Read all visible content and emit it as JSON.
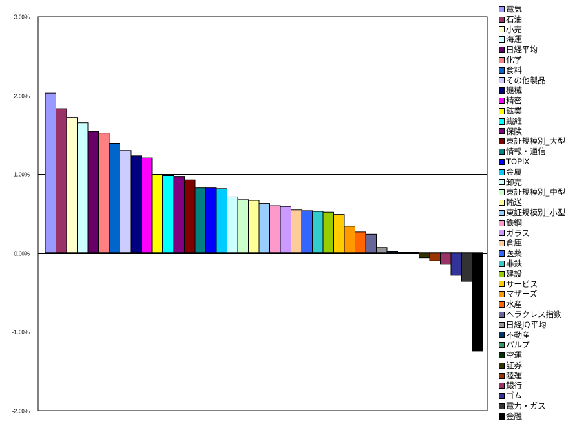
{
  "chart_data": {
    "type": "bar",
    "title": "",
    "xlabel": "",
    "ylabel": "",
    "ylim": [
      -0.02,
      0.03
    ],
    "yticks": [
      "3.00%",
      "2.00%",
      "1.00%",
      "0.00%",
      "-1.00%",
      "-2.00%"
    ],
    "grid": true,
    "legend_position": "right",
    "categories": [
      "電気",
      "石油",
      "小売",
      "海運",
      "日経平均",
      "化学",
      "食料",
      "その他製品",
      "機械",
      "精密",
      "鉱業",
      "繊維",
      "保険",
      "東証規模別_大型",
      "情報・通信",
      "TOPIX",
      "金属",
      "卸売",
      "東証規模別_中型",
      "輸送",
      "東証規模別_小型",
      "鉄鋼",
      "ガラス",
      "倉庫",
      "医薬",
      "非鉄",
      "建設",
      "サービス",
      "マザーズ",
      "水産",
      "ヘラクレス指数",
      "日経JQ平均",
      "不動産",
      "パルプ",
      "空運",
      "証券",
      "陸運",
      "銀行",
      "ゴム",
      "電力・ガス",
      "金融"
    ],
    "values": [
      2.03,
      1.83,
      1.72,
      1.65,
      1.54,
      1.52,
      1.39,
      1.3,
      1.23,
      1.21,
      0.99,
      0.98,
      0.97,
      0.93,
      0.83,
      0.83,
      0.82,
      0.71,
      0.68,
      0.67,
      0.63,
      0.6,
      0.59,
      0.55,
      0.54,
      0.53,
      0.52,
      0.49,
      0.34,
      0.27,
      0.24,
      0.07,
      0.02,
      0.005,
      0.003,
      -0.06,
      -0.1,
      -0.14,
      -0.28,
      -0.36,
      -1.24
    ],
    "value_unit": "%",
    "colors": [
      "#9999FF",
      "#993366",
      "#FFFFCC",
      "#CCFFFF",
      "#660066",
      "#FF8080",
      "#0066CC",
      "#CCCCFF",
      "#000080",
      "#FF00FF",
      "#FFFF00",
      "#00FFFF",
      "#800080",
      "#800000",
      "#008080",
      "#0000FF",
      "#00CCFF",
      "#CCFFFF",
      "#CCFFCC",
      "#FFFF99",
      "#99CCFF",
      "#FF99CC",
      "#CC99FF",
      "#FFCC99",
      "#3366FF",
      "#33CCCC",
      "#99CC00",
      "#FFCC00",
      "#FF9900",
      "#FF6600",
      "#666699",
      "#969696",
      "#003366",
      "#339966",
      "#003300",
      "#333300",
      "#993300",
      "#993366",
      "#333399",
      "#333333",
      "#000000"
    ]
  }
}
